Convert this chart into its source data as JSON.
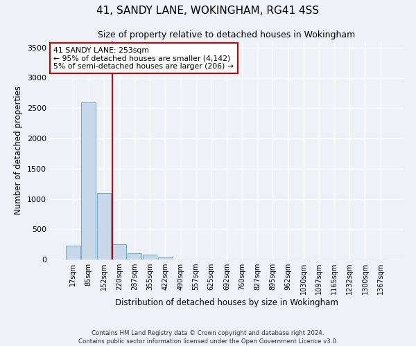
{
  "title1": "41, SANDY LANE, WOKINGHAM, RG41 4SS",
  "title2": "Size of property relative to detached houses in Wokingham",
  "xlabel": "Distribution of detached houses by size in Wokingham",
  "ylabel": "Number of detached properties",
  "footnote1": "Contains HM Land Registry data © Crown copyright and database right 2024.",
  "footnote2": "Contains public sector information licensed under the Open Government Licence v3.0.",
  "bar_labels": [
    "17sqm",
    "85sqm",
    "152sqm",
    "220sqm",
    "287sqm",
    "355sqm",
    "422sqm",
    "490sqm",
    "557sqm",
    "625sqm",
    "692sqm",
    "760sqm",
    "827sqm",
    "895sqm",
    "962sqm",
    "1030sqm",
    "1097sqm",
    "1165sqm",
    "1232sqm",
    "1300sqm",
    "1367sqm"
  ],
  "bar_values": [
    230,
    2600,
    1100,
    250,
    100,
    80,
    30,
    0,
    0,
    0,
    0,
    0,
    0,
    0,
    0,
    0,
    0,
    0,
    0,
    0,
    0
  ],
  "bar_color": "#c8d8e8",
  "bar_edge_color": "#7aaac8",
  "ylim": [
    0,
    3600
  ],
  "yticks": [
    0,
    500,
    1000,
    1500,
    2000,
    2500,
    3000,
    3500
  ],
  "property_line_x": 2.575,
  "property_line_color": "#cc0000",
  "annotation_text": "41 SANDY LANE: 253sqm\n← 95% of detached houses are smaller (4,142)\n5% of semi-detached houses are larger (206) →",
  "annotation_box_color": "#ffffff",
  "annotation_box_edge": "#cc0000",
  "background_color": "#eef2f7",
  "grid_color": "#ffffff",
  "figsize": [
    6.0,
    5.0
  ],
  "dpi": 100
}
